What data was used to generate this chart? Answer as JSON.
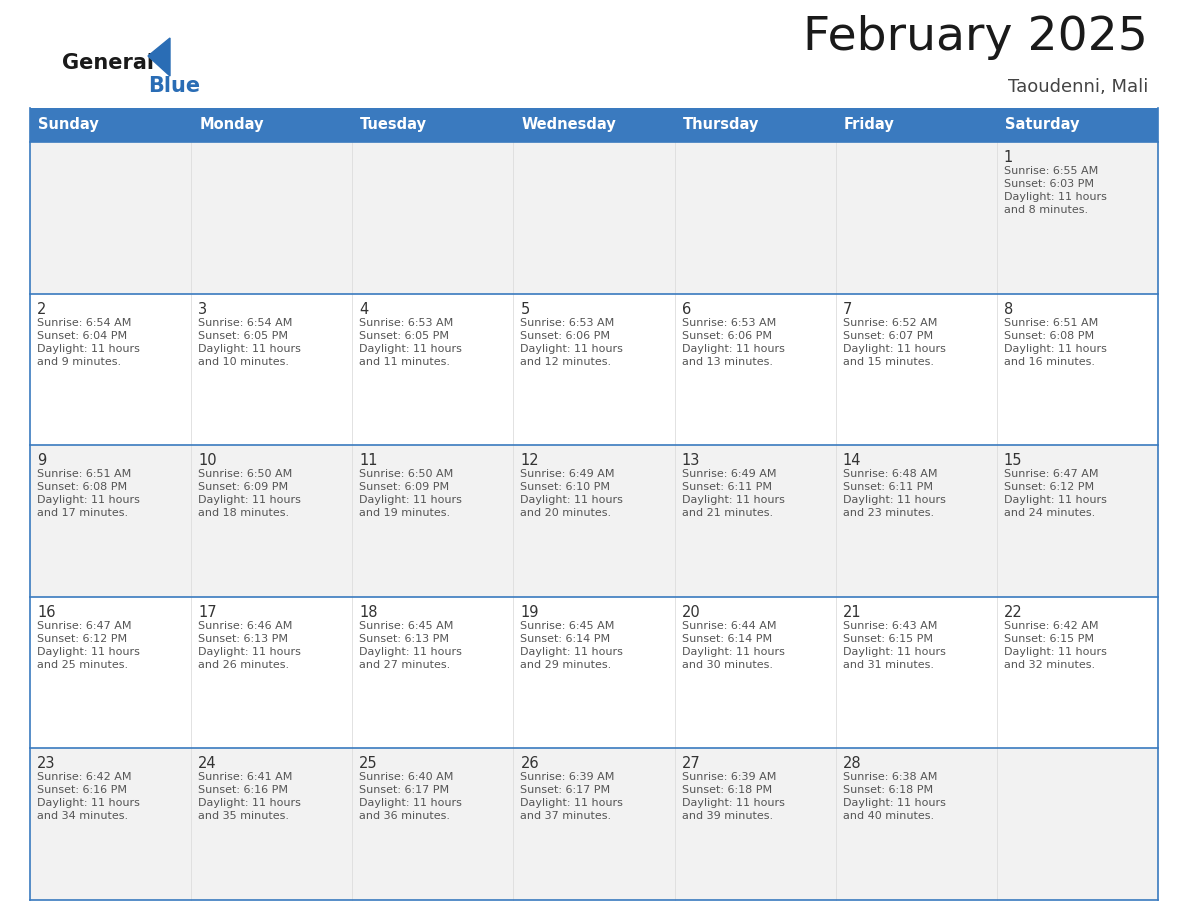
{
  "title": "February 2025",
  "subtitle": "Taoudenni, Mali",
  "header_bg_color": "#3a7abf",
  "header_text_color": "#ffffff",
  "day_names": [
    "Sunday",
    "Monday",
    "Tuesday",
    "Wednesday",
    "Thursday",
    "Friday",
    "Saturday"
  ],
  "cell_bg_even": "#f2f2f2",
  "cell_bg_odd": "#ffffff",
  "cell_border_top_color": "#3a7abf",
  "cell_border_color": "#cccccc",
  "date_color": "#333333",
  "info_color": "#555555",
  "logo_general_color": "#1a1a1a",
  "logo_blue_color": "#2a6db5",
  "logo_triangle_color": "#2a6db5",
  "calendar": [
    [
      null,
      null,
      null,
      null,
      null,
      null,
      {
        "day": 1,
        "sunrise": "6:55 AM",
        "sunset": "6:03 PM",
        "daylight": "11 hours and 8 minutes."
      }
    ],
    [
      {
        "day": 2,
        "sunrise": "6:54 AM",
        "sunset": "6:04 PM",
        "daylight": "11 hours and 9 minutes."
      },
      {
        "day": 3,
        "sunrise": "6:54 AM",
        "sunset": "6:05 PM",
        "daylight": "11 hours and 10 minutes."
      },
      {
        "day": 4,
        "sunrise": "6:53 AM",
        "sunset": "6:05 PM",
        "daylight": "11 hours and 11 minutes."
      },
      {
        "day": 5,
        "sunrise": "6:53 AM",
        "sunset": "6:06 PM",
        "daylight": "11 hours and 12 minutes."
      },
      {
        "day": 6,
        "sunrise": "6:53 AM",
        "sunset": "6:06 PM",
        "daylight": "11 hours and 13 minutes."
      },
      {
        "day": 7,
        "sunrise": "6:52 AM",
        "sunset": "6:07 PM",
        "daylight": "11 hours and 15 minutes."
      },
      {
        "day": 8,
        "sunrise": "6:51 AM",
        "sunset": "6:08 PM",
        "daylight": "11 hours and 16 minutes."
      }
    ],
    [
      {
        "day": 9,
        "sunrise": "6:51 AM",
        "sunset": "6:08 PM",
        "daylight": "11 hours and 17 minutes."
      },
      {
        "day": 10,
        "sunrise": "6:50 AM",
        "sunset": "6:09 PM",
        "daylight": "11 hours and 18 minutes."
      },
      {
        "day": 11,
        "sunrise": "6:50 AM",
        "sunset": "6:09 PM",
        "daylight": "11 hours and 19 minutes."
      },
      {
        "day": 12,
        "sunrise": "6:49 AM",
        "sunset": "6:10 PM",
        "daylight": "11 hours and 20 minutes."
      },
      {
        "day": 13,
        "sunrise": "6:49 AM",
        "sunset": "6:11 PM",
        "daylight": "11 hours and 21 minutes."
      },
      {
        "day": 14,
        "sunrise": "6:48 AM",
        "sunset": "6:11 PM",
        "daylight": "11 hours and 23 minutes."
      },
      {
        "day": 15,
        "sunrise": "6:47 AM",
        "sunset": "6:12 PM",
        "daylight": "11 hours and 24 minutes."
      }
    ],
    [
      {
        "day": 16,
        "sunrise": "6:47 AM",
        "sunset": "6:12 PM",
        "daylight": "11 hours and 25 minutes."
      },
      {
        "day": 17,
        "sunrise": "6:46 AM",
        "sunset": "6:13 PM",
        "daylight": "11 hours and 26 minutes."
      },
      {
        "day": 18,
        "sunrise": "6:45 AM",
        "sunset": "6:13 PM",
        "daylight": "11 hours and 27 minutes."
      },
      {
        "day": 19,
        "sunrise": "6:45 AM",
        "sunset": "6:14 PM",
        "daylight": "11 hours and 29 minutes."
      },
      {
        "day": 20,
        "sunrise": "6:44 AM",
        "sunset": "6:14 PM",
        "daylight": "11 hours and 30 minutes."
      },
      {
        "day": 21,
        "sunrise": "6:43 AM",
        "sunset": "6:15 PM",
        "daylight": "11 hours and 31 minutes."
      },
      {
        "day": 22,
        "sunrise": "6:42 AM",
        "sunset": "6:15 PM",
        "daylight": "11 hours and 32 minutes."
      }
    ],
    [
      {
        "day": 23,
        "sunrise": "6:42 AM",
        "sunset": "6:16 PM",
        "daylight": "11 hours and 34 minutes."
      },
      {
        "day": 24,
        "sunrise": "6:41 AM",
        "sunset": "6:16 PM",
        "daylight": "11 hours and 35 minutes."
      },
      {
        "day": 25,
        "sunrise": "6:40 AM",
        "sunset": "6:17 PM",
        "daylight": "11 hours and 36 minutes."
      },
      {
        "day": 26,
        "sunrise": "6:39 AM",
        "sunset": "6:17 PM",
        "daylight": "11 hours and 37 minutes."
      },
      {
        "day": 27,
        "sunrise": "6:39 AM",
        "sunset": "6:18 PM",
        "daylight": "11 hours and 39 minutes."
      },
      {
        "day": 28,
        "sunrise": "6:38 AM",
        "sunset": "6:18 PM",
        "daylight": "11 hours and 40 minutes."
      },
      null
    ]
  ]
}
